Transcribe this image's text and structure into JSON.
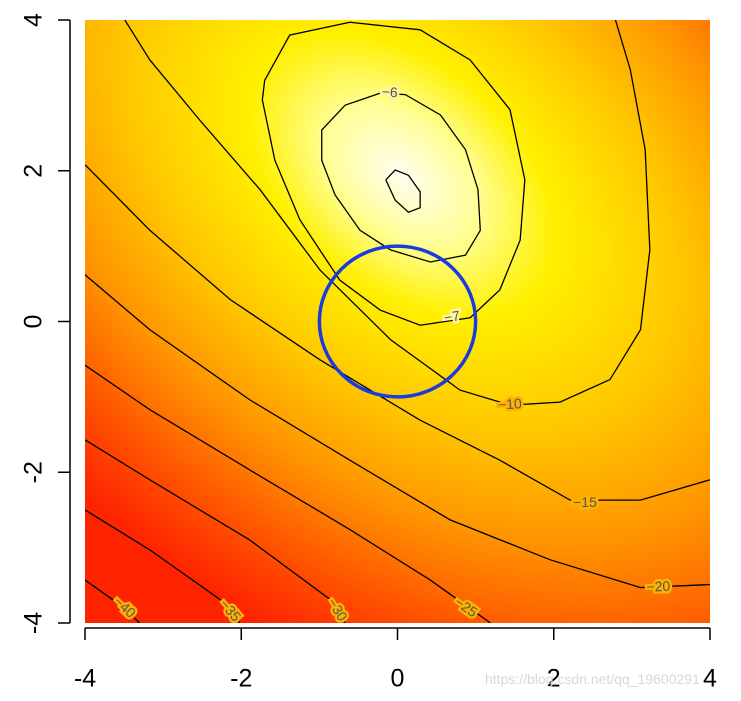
{
  "chart_data": {
    "type": "contour",
    "xlim": [
      -4,
      4
    ],
    "ylim": [
      -4,
      4
    ],
    "xticks": [
      -4,
      -2,
      0,
      2,
      4
    ],
    "yticks": [
      -4,
      -2,
      0,
      2,
      4
    ],
    "line_color": "#000000",
    "contours": [
      {
        "x": [
          -0.15,
          -0.03,
          0.14,
          0.29,
          0.29,
          0.14,
          -0.03,
          -0.15
        ],
        "y": [
          1.88,
          2.01,
          1.94,
          1.72,
          1.51,
          1.45,
          1.61,
          1.88
        ]
      },
      {
        "label": "−6",
        "label_point": [
          -0.1,
          3.03
        ],
        "x": [
          -0.22,
          -0.67,
          -0.97,
          -0.97,
          -0.8,
          -0.48,
          -0.09,
          0.42,
          0.87,
          1.06,
          1.03,
          0.87,
          0.55,
          0.1,
          -0.22
        ],
        "y": [
          3.03,
          2.87,
          2.54,
          2.14,
          1.68,
          1.21,
          0.95,
          0.79,
          0.88,
          1.21,
          1.75,
          2.28,
          2.74,
          3.01,
          3.03
        ]
      },
      {
        "label": "−7",
        "label_point": [
          0.7,
          0.05
        ],
        "x": [
          -1.7,
          -1.38,
          -0.61,
          0.29,
          0.93,
          1.44,
          1.63,
          1.57,
          1.31,
          0.93,
          0.29,
          -0.22,
          -0.74,
          -1.25,
          -1.57,
          -1.73,
          -1.7
        ],
        "y": [
          3.2,
          3.8,
          3.97,
          3.87,
          3.47,
          2.81,
          1.88,
          1.08,
          0.42,
          0.05,
          -0.05,
          0.15,
          0.55,
          1.35,
          2.14,
          2.94,
          3.2
        ]
      },
      {
        "label": "−10",
        "label_point": [
          1.44,
          -1.11
        ],
        "x": [
          -3.49,
          -3.17,
          -2.53,
          -1.76,
          -0.99,
          -0.09,
          0.8,
          1.44,
          2.08,
          2.72,
          3.11,
          3.23,
          3.17,
          2.98,
          2.79
        ],
        "y": [
          4.0,
          3.47,
          2.67,
          1.75,
          0.68,
          -0.24,
          -0.91,
          -1.11,
          -1.07,
          -0.77,
          -0.11,
          0.95,
          2.28,
          3.34,
          4.0
        ]
      },
      {
        "label": "−15",
        "label_point": [
          2.4,
          -2.41
        ],
        "x": [
          -4,
          -3.17,
          -2.14,
          -0.99,
          0.29,
          1.31,
          2.21,
          3.11,
          4
        ],
        "y": [
          2.08,
          1.21,
          0.29,
          -0.51,
          -1.31,
          -1.84,
          -2.37,
          -2.37,
          -2.1
        ]
      },
      {
        "label": "−20",
        "label_point": [
          3.34,
          -3.53
        ],
        "x": [
          -4,
          -3.17,
          -1.89,
          -0.61,
          0.67,
          1.95,
          3.11,
          4
        ],
        "y": [
          0.62,
          -0.11,
          -1.04,
          -1.84,
          -2.63,
          -3.16,
          -3.53,
          -3.49
        ]
      },
      {
        "label": "−25",
        "label_point": [
          0.87,
          -3.8
        ],
        "x": [
          -4,
          -3.17,
          -1.89,
          -0.61,
          0.42,
          1.19
        ],
        "y": [
          -0.58,
          -1.17,
          -1.97,
          -2.76,
          -3.43,
          -4.0
        ]
      },
      {
        "label": "−30",
        "label_point": [
          -0.78,
          -3.83
        ],
        "x": [
          -4,
          -3.17,
          -1.89,
          -0.86,
          -0.67
        ],
        "y": [
          -1.57,
          -2.1,
          -2.9,
          -3.69,
          -4.0
        ]
      },
      {
        "label": "−35",
        "label_point": [
          -2.15,
          -3.84
        ],
        "x": [
          -4,
          -3.17,
          -2.27,
          -2.02
        ],
        "y": [
          -2.5,
          -3.03,
          -3.69,
          -4.0
        ]
      },
      {
        "label": "−40",
        "label_point": [
          -3.5,
          -3.8
        ],
        "x": [
          -4,
          -3.55,
          -3.3
        ],
        "y": [
          -3.43,
          -3.76,
          -4.0
        ]
      }
    ],
    "circle": {
      "center": [
        0,
        0
      ],
      "radius": 1,
      "color": "#1a3be0"
    },
    "watermark": "https://blog.csdn.net/qq_19600291"
  }
}
